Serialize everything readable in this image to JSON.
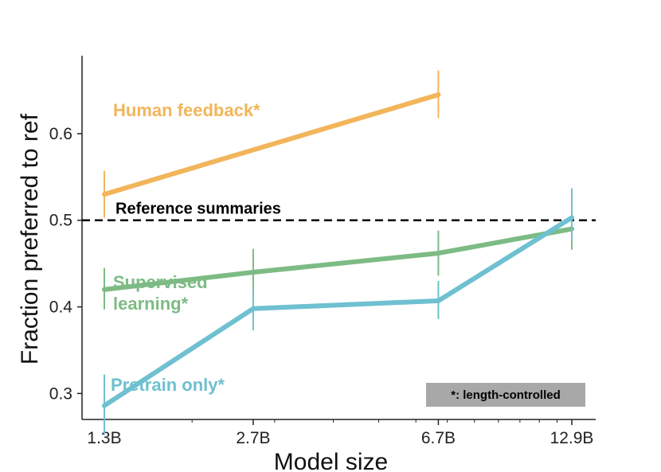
{
  "chart_data": {
    "type": "line",
    "title": "",
    "xlabel": "Model size",
    "ylabel": "Fraction preferred to ref",
    "x_scale": "log",
    "x_values": [
      1.3,
      2.7,
      6.7,
      12.9
    ],
    "x_tick_labels": [
      "1.3B",
      "2.7B",
      "6.7B",
      "12.9B"
    ],
    "ylim": [
      0.27,
      0.69
    ],
    "y_ticks": [
      0.3,
      0.4,
      0.5,
      0.6
    ],
    "y_tick_labels": [
      "0.3",
      "0.4",
      "0.5",
      "0.6"
    ],
    "reference": {
      "value": 0.5,
      "label": "Reference summaries"
    },
    "note": "*: length-controlled",
    "series": [
      {
        "name": "Human feedback*",
        "label_lines": [
          "Human feedback*"
        ],
        "color": "#F2B55A",
        "x": [
          1.3,
          6.7
        ],
        "values": [
          0.53,
          0.645
        ],
        "err_low": [
          0.503,
          0.618
        ],
        "err_high": [
          0.557,
          0.673
        ]
      },
      {
        "name": "Supervised learning*",
        "label_lines": [
          "Supervised",
          "learning*"
        ],
        "color": "#7DBB84",
        "x": [
          1.3,
          2.7,
          6.7,
          12.9
        ],
        "values": [
          0.42,
          0.44,
          0.462,
          0.49
        ],
        "err_low": [
          0.397,
          0.413,
          0.436,
          0.466
        ],
        "err_high": [
          0.445,
          0.467,
          0.488,
          0.514
        ]
      },
      {
        "name": "Pretrain only*",
        "label_lines": [
          "Pretrain only*"
        ],
        "color": "#6FC0D0",
        "x": [
          1.3,
          2.7,
          6.7,
          12.9
        ],
        "values": [
          0.286,
          0.398,
          0.407,
          0.503
        ],
        "err_low": [
          0.252,
          0.373,
          0.386,
          0.476
        ],
        "err_high": [
          0.322,
          0.423,
          0.43,
          0.537
        ]
      }
    ]
  },
  "colors": {
    "axis": "#222222",
    "reference": "#000000",
    "note_bg": "#A8A8A8"
  }
}
